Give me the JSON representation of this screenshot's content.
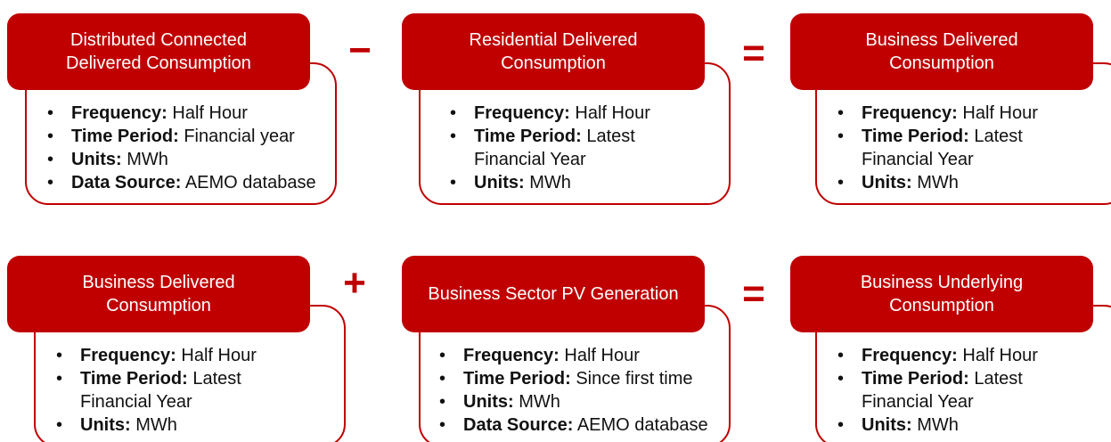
{
  "rows": [
    {
      "boxes": [
        {
          "title_lines": [
            "Distributed Connected",
            "Delivered Consumption"
          ],
          "bullets": [
            {
              "label": "Frequency:",
              "value": "Half Hour"
            },
            {
              "label": "Time Period:",
              "value": "Financial year"
            },
            {
              "label": "Units:",
              "value": "MWh"
            },
            {
              "label": "Data Source:",
              "value": "AEMO database"
            }
          ]
        },
        {
          "title_lines": [
            "Residential Delivered",
            "Consumption"
          ],
          "bullets": [
            {
              "label": "Frequency:",
              "value": "Half Hour"
            },
            {
              "label": "Time Period:",
              "value": "Latest Financial Year"
            },
            {
              "label": "Units:",
              "value": "MWh"
            }
          ]
        },
        {
          "title_lines": [
            "Business Delivered",
            "Consumption"
          ],
          "bullets": [
            {
              "label": "Frequency:",
              "value": "Half Hour"
            },
            {
              "label": "Time Period:",
              "value": "Latest Financial Year"
            },
            {
              "label": "Units:",
              "value": "MWh"
            }
          ]
        }
      ],
      "operators": [
        "−",
        "="
      ]
    },
    {
      "boxes": [
        {
          "title_lines": [
            "Business Delivered",
            "Consumption"
          ],
          "bullets": [
            {
              "label": "Frequency:",
              "value": "Half Hour"
            },
            {
              "label": "Time Period:",
              "value": "Latest Financial Year"
            },
            {
              "label": "Units:",
              "value": "MWh"
            }
          ]
        },
        {
          "title_lines": [
            "Business Sector PV Generation"
          ],
          "bullets": [
            {
              "label": "Frequency:",
              "value": "Half Hour"
            },
            {
              "label": "Time Period:",
              "value": "Since first time"
            },
            {
              "label": "Units:",
              "value": "MWh"
            },
            {
              "label": "Data Source:",
              "value": "AEMO database"
            }
          ]
        },
        {
          "title_lines": [
            "Business Underlying",
            "Consumption"
          ],
          "bullets": [
            {
              "label": "Frequency:",
              "value": "Half Hour"
            },
            {
              "label": "Time Period:",
              "value": "Latest Financial Year"
            },
            {
              "label": "Units:",
              "value": "MWh"
            }
          ]
        }
      ],
      "operators": [
        "+",
        "="
      ]
    }
  ]
}
